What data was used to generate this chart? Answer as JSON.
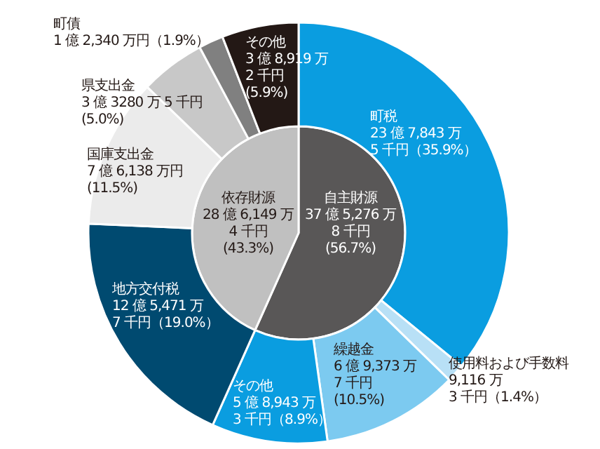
{
  "chart_data": [
    {
      "type": "pie",
      "categories": [
        "自主財源",
        "依存財源"
      ],
      "values": [
        56.7,
        43.3
      ],
      "colors": [
        "#595757",
        "#c0c0c0"
      ],
      "value_labels": [
        "37 億 5,276 万\n8 千円\n(56.7%)",
        "28 億 6,149 万\n4 千円\n(43.3%)"
      ]
    },
    {
      "type": "donut",
      "categories": [
        "町税",
        "使用料および手数料",
        "繰越金",
        "その他",
        "地方交付税",
        "国庫支出金",
        "県支出金",
        "町債",
        "その他"
      ],
      "values": [
        35.9,
        1.4,
        10.5,
        8.9,
        19.0,
        11.5,
        5.0,
        1.9,
        5.9
      ],
      "colors": [
        "#0a9de0",
        "#b8e0f6",
        "#7ccaf0",
        "#0a9de0",
        "#004a70",
        "#ebebeb",
        "#c8c8c8",
        "#808080",
        "#231815"
      ],
      "value_labels": [
        "23 億 7,843 万\n5 千円（35.9%）",
        "9,116 万\n3 千円（1.4%）",
        "6 億 9,373 万\n7 千円\n(10.5%)",
        "5 億 8,943 万\n3 千円（8.9%）",
        "12 億 5,471 万\n7 千円（19.0%）",
        "7 億 6,138 万円\n(11.5%)",
        "3 億 3280 万 5 千円\n(5.0%)",
        "1 億 2,340 万円（1.9%）",
        "3 億 8,919 万\n2 千円\n(5.9%)"
      ]
    }
  ]
}
